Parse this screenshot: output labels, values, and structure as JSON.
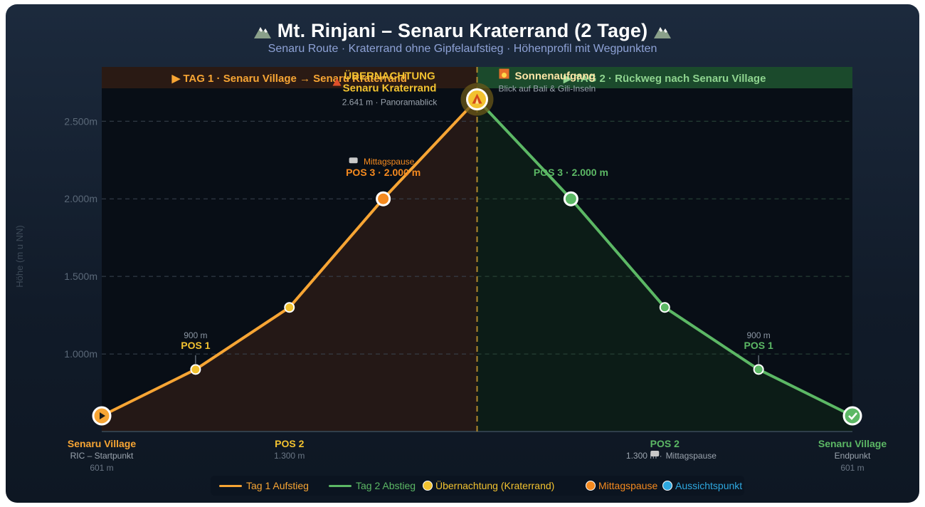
{
  "header": {
    "title": "Mt. Rinjani – Senaru Kraterrand (2 Tage)",
    "subtitle": "Senaru Route · Kraterrand ohne Gipfelaufstieg · Höhenprofil mit Wegpunkten"
  },
  "days": {
    "day1": "▶ TAG 1 · Senaru Village → Senaru Kraterrand",
    "day2": "▶ TAG 2 · Rückweg nach Senaru Village"
  },
  "colors": {
    "day1": "#f7a534",
    "day2": "#5cb865",
    "summit": "#f2c230",
    "lunch": "#f58a1f",
    "viewpoint": "#2ea8e0"
  },
  "chart_data": {
    "type": "line",
    "ylabel": "Höhe (m u NN)",
    "ylim": [
      500,
      2850
    ],
    "y_ticks": [
      1000,
      1500,
      2000,
      2500
    ],
    "y_tick_labels": [
      "1.000m",
      "1.500m",
      "2.000m",
      "2.500m"
    ],
    "grid": true,
    "x_range": [
      0,
      8
    ],
    "series": [
      {
        "name": "Tag 1 Aufstieg",
        "x": [
          0,
          1,
          2,
          3,
          4
        ],
        "y": [
          601,
          900,
          1300,
          2000,
          2641
        ]
      },
      {
        "name": "Tag 2 Abstieg",
        "x": [
          4,
          5,
          6,
          7,
          8
        ],
        "y": [
          2641,
          2000,
          1300,
          900,
          601
        ]
      }
    ],
    "annotations": {
      "start": {
        "name": "Senaru Village",
        "sub": "RIC – Startpunkt",
        "alt": "601 m"
      },
      "pos1_up": {
        "alt": "900 m",
        "name": "POS 1"
      },
      "pos2_up": {
        "name": "POS 2",
        "alt": "1.300 m"
      },
      "pos3_up": {
        "note": "Mittagspause",
        "name": "POS 3 · 2.000 m"
      },
      "camp": {
        "title": "ÜBERNACHTUNG",
        "name": "Senaru Kraterrand",
        "sub": "2.641 m · Panoramablick"
      },
      "sunrise": {
        "title": "Sonnenaufgang",
        "sub": "Blick auf Bali & Gili-Inseln"
      },
      "pos3_down": {
        "name": "POS 3 · 2.000 m"
      },
      "pos2_down": {
        "name": "POS 2",
        "alt": "1.300 m ·",
        "note": "Mittagspause"
      },
      "pos1_down": {
        "alt": "900 m",
        "name": "POS 1"
      },
      "end": {
        "name": "Senaru Village",
        "sub": "Endpunkt",
        "alt": "601 m"
      }
    },
    "legend": [
      {
        "label": "Tag 1 Aufstieg",
        "kind": "line",
        "color": "#f7a534"
      },
      {
        "label": "Tag 2 Abstieg",
        "kind": "line",
        "color": "#5cb865"
      },
      {
        "label": "Übernachtung (Kraterrand)",
        "kind": "dot",
        "color": "#f2c230"
      },
      {
        "label": "Mittagspause",
        "kind": "dot",
        "color": "#f58a1f"
      },
      {
        "label": "Aussichtspunkt",
        "kind": "dot",
        "color": "#2ea8e0"
      }
    ]
  }
}
